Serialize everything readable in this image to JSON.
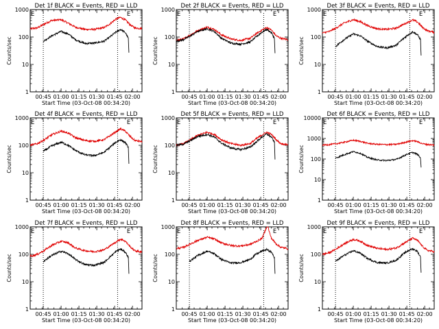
{
  "chart_data": [
    {
      "type": "line",
      "title": "Det 1f BLACK = Events, RED = LLD",
      "xlabel": "Start Time (03-Oct-08 00:34:20)",
      "ylabel": "Counts/sec",
      "yscale": "log",
      "ylim": [
        1,
        1000
      ],
      "xlim": [
        34,
        128
      ],
      "xticks": [
        "00:45",
        "01:00",
        "01:15",
        "01:30",
        "01:45",
        "02:00"
      ],
      "yticks": [
        "1",
        "10",
        "100",
        "1000"
      ],
      "markers": {
        "start": "E",
        "end": "E",
        "start_min": 34,
        "end_min": 117
      },
      "guides": [
        45,
        107.5
      ],
      "series": [
        {
          "color": "#000000",
          "x": [
            45,
            52,
            60,
            66,
            72,
            80,
            88,
            96,
            101,
            106,
            110,
            114,
            116.5,
            117
          ],
          "y": [
            70,
            110,
            160,
            130,
            80,
            58,
            60,
            70,
            100,
            150,
            190,
            145,
            90,
            25
          ]
        },
        {
          "color": "#e00000",
          "x": [
            34,
            40,
            46,
            52,
            60,
            66,
            72,
            80,
            88,
            96,
            101,
            106,
            110,
            114,
            118,
            122,
            128
          ],
          "y": [
            200,
            215,
            300,
            400,
            430,
            320,
            230,
            190,
            190,
            220,
            300,
            450,
            520,
            420,
            280,
            215,
            205
          ]
        }
      ]
    },
    {
      "type": "line",
      "title": "Det 2f BLACK = Events, RED = LLD",
      "xlabel": "Start Time (03-Oct-08 00:34:20)",
      "ylabel": "Counts/sec",
      "yscale": "log",
      "ylim": [
        1,
        1000
      ],
      "xlim": [
        34,
        128
      ],
      "xticks": [
        "00:45",
        "01:00",
        "01:15",
        "01:30",
        "01:45",
        "02:00"
      ],
      "yticks": [
        "1",
        "10",
        "100",
        "1000"
      ],
      "markers": {
        "start": "E",
        "end": "E",
        "start_min": 34,
        "end_min": 117
      },
      "guides": [
        45,
        107.5
      ],
      "series": [
        {
          "color": "#000000",
          "x": [
            34,
            40,
            46,
            52,
            60,
            66,
            72,
            80,
            88,
            96,
            101,
            106,
            110,
            114,
            116.5,
            117
          ],
          "y": [
            70,
            80,
            110,
            160,
            200,
            160,
            90,
            60,
            55,
            65,
            100,
            150,
            190,
            145,
            90,
            25
          ]
        },
        {
          "color": "#e00000",
          "x": [
            34,
            40,
            46,
            52,
            60,
            66,
            72,
            80,
            88,
            96,
            101,
            106,
            110,
            114,
            118,
            122,
            128
          ],
          "y": [
            75,
            85,
            120,
            170,
            230,
            190,
            120,
            85,
            75,
            90,
            130,
            180,
            220,
            180,
            110,
            90,
            80
          ]
        }
      ]
    },
    {
      "type": "line",
      "title": "Det 3f BLACK = Events, RED = LLD",
      "xlabel": "Start Time (03-Oct-08 00:34:20)",
      "ylabel": "Counts/sec",
      "yscale": "log",
      "ylim": [
        1,
        1000
      ],
      "xlim": [
        34,
        128
      ],
      "xticks": [
        "00:45",
        "01:00",
        "01:15",
        "01:30",
        "01:45",
        "02:00"
      ],
      "yticks": [
        "1",
        "10",
        "100",
        "1000"
      ],
      "markers": {
        "start": "E",
        "end": "E",
        "start_min": 34,
        "end_min": 117
      },
      "guides": [
        45,
        107.5
      ],
      "series": [
        {
          "color": "#000000",
          "x": [
            45,
            52,
            60,
            66,
            72,
            80,
            88,
            96,
            101,
            106,
            110,
            114,
            116.5,
            117
          ],
          "y": [
            45,
            80,
            130,
            110,
            70,
            45,
            40,
            50,
            80,
            120,
            155,
            120,
            80,
            20
          ]
        },
        {
          "color": "#e00000",
          "x": [
            34,
            40,
            46,
            52,
            60,
            66,
            72,
            80,
            88,
            96,
            101,
            106,
            110,
            114,
            118,
            122,
            128
          ],
          "y": [
            140,
            160,
            220,
            320,
            430,
            360,
            260,
            200,
            190,
            210,
            270,
            350,
            420,
            350,
            230,
            170,
            150
          ]
        }
      ]
    },
    {
      "type": "line",
      "title": "Det 4f BLACK = Events, RED = LLD",
      "xlabel": "Start Time (03-Oct-08 00:34:20)",
      "ylabel": "Counts/sec",
      "yscale": "log",
      "ylim": [
        1,
        1000
      ],
      "xlim": [
        34,
        128
      ],
      "xticks": [
        "00:45",
        "01:00",
        "01:15",
        "01:30",
        "01:45",
        "02:00"
      ],
      "yticks": [
        "1",
        "10",
        "100",
        "1000"
      ],
      "markers": {
        "start": "E",
        "end": "E",
        "start_min": 34,
        "end_min": 117
      },
      "guides": [
        45,
        107.5
      ],
      "series": [
        {
          "color": "#000000",
          "x": [
            45,
            52,
            60,
            66,
            72,
            80,
            88,
            96,
            101,
            106,
            110,
            114,
            116.5,
            117
          ],
          "y": [
            60,
            95,
            130,
            100,
            65,
            45,
            42,
            55,
            85,
            130,
            160,
            125,
            85,
            20
          ]
        },
        {
          "color": "#e00000",
          "x": [
            34,
            40,
            46,
            52,
            60,
            66,
            72,
            80,
            88,
            96,
            101,
            106,
            110,
            114,
            118,
            122,
            128
          ],
          "y": [
            100,
            115,
            160,
            240,
            330,
            280,
            190,
            150,
            140,
            160,
            220,
            310,
            400,
            330,
            210,
            150,
            135
          ]
        }
      ]
    },
    {
      "type": "line",
      "title": "Det 5f BLACK = Events, RED = LLD",
      "xlabel": "Start Time (03-Oct-08 00:34:20)",
      "ylabel": "Counts/sec",
      "yscale": "log",
      "ylim": [
        1,
        1000
      ],
      "xlim": [
        34,
        128
      ],
      "xticks": [
        "00:45",
        "01:00",
        "01:15",
        "01:30",
        "01:45",
        "02:00"
      ],
      "yticks": [
        "1",
        "10",
        "100",
        "1000"
      ],
      "markers": {
        "start": "E",
        "end": "E",
        "start_min": 34,
        "end_min": 117
      },
      "guides": [
        45,
        107.5
      ],
      "series": [
        {
          "color": "#000000",
          "x": [
            34,
            40,
            46,
            52,
            60,
            66,
            72,
            80,
            88,
            96,
            101,
            106,
            110,
            114,
            116.5,
            117
          ],
          "y": [
            100,
            110,
            150,
            210,
            250,
            200,
            120,
            80,
            70,
            85,
            130,
            200,
            260,
            200,
            130,
            30
          ]
        },
        {
          "color": "#e00000",
          "x": [
            34,
            40,
            46,
            52,
            60,
            66,
            72,
            80,
            88,
            96,
            101,
            106,
            110,
            114,
            118,
            122,
            128
          ],
          "y": [
            100,
            115,
            160,
            230,
            300,
            250,
            160,
            115,
            100,
            115,
            170,
            240,
            300,
            250,
            160,
            115,
            105
          ]
        }
      ]
    },
    {
      "type": "line",
      "title": "Det 6f BLACK = Events, RED = LLD",
      "xlabel": "Start Time (03-Oct-08 00:34:20)",
      "ylabel": "Counts/sec",
      "yscale": "log",
      "ylim": [
        1,
        10000
      ],
      "xlim": [
        34,
        128
      ],
      "xticks": [
        "00:45",
        "01:00",
        "01:15",
        "01:30",
        "01:45",
        "02:00"
      ],
      "yticks": [
        "1",
        "10",
        "100",
        "1000",
        "10000"
      ],
      "markers": {
        "start": "E",
        "end": "E",
        "start_min": 34,
        "end_min": 117
      },
      "guides": [
        45,
        107.5
      ],
      "series": [
        {
          "color": "#000000",
          "x": [
            45,
            52,
            60,
            66,
            72,
            80,
            88,
            96,
            101,
            106,
            110,
            114,
            116.5,
            117
          ],
          "y": [
            110,
            160,
            230,
            190,
            120,
            90,
            85,
            95,
            130,
            180,
            210,
            170,
            110,
            40
          ]
        },
        {
          "color": "#e00000",
          "x": [
            34,
            40,
            46,
            52,
            60,
            66,
            72,
            80,
            88,
            96,
            101,
            106,
            110,
            114,
            118,
            122,
            128
          ],
          "y": [
            480,
            500,
            560,
            650,
            820,
            720,
            580,
            520,
            500,
            520,
            600,
            700,
            780,
            700,
            560,
            510,
            480
          ]
        }
      ]
    },
    {
      "type": "line",
      "title": "Det 7f BLACK = Events, RED = LLD",
      "xlabel": "Start Time (03-Oct-08 00:34:20)",
      "ylabel": "Counts/sec",
      "yscale": "log",
      "ylim": [
        1,
        1000
      ],
      "xlim": [
        34,
        128
      ],
      "xticks": [
        "00:45",
        "01:00",
        "01:15",
        "01:30",
        "01:45",
        "02:00"
      ],
      "yticks": [
        "1",
        "10",
        "100",
        "1000"
      ],
      "markers": {
        "start": "E",
        "end": "E",
        "start_min": 34,
        "end_min": 117
      },
      "guides": [
        45,
        107.5
      ],
      "series": [
        {
          "color": "#000000",
          "x": [
            45,
            52,
            60,
            66,
            72,
            80,
            88,
            96,
            101,
            106,
            110,
            114,
            116.5,
            117
          ],
          "y": [
            55,
            90,
            130,
            105,
            65,
            42,
            40,
            50,
            80,
            125,
            155,
            120,
            80,
            20
          ]
        },
        {
          "color": "#e00000",
          "x": [
            34,
            40,
            46,
            52,
            60,
            66,
            72,
            80,
            88,
            96,
            101,
            106,
            110,
            114,
            118,
            122,
            128
          ],
          "y": [
            85,
            100,
            140,
            210,
            300,
            260,
            170,
            135,
            125,
            145,
            200,
            280,
            360,
            300,
            190,
            135,
            120
          ]
        }
      ]
    },
    {
      "type": "line",
      "title": "Det 8f BLACK = Events, RED = LLD",
      "xlabel": "Start Time (03-Oct-08 00:34:20)",
      "ylabel": "Counts/sec",
      "yscale": "log",
      "ylim": [
        1,
        1000
      ],
      "xlim": [
        34,
        128
      ],
      "xticks": [
        "00:45",
        "01:00",
        "01:15",
        "01:30",
        "01:45",
        "02:00"
      ],
      "yticks": [
        "1",
        "10",
        "100",
        "1000"
      ],
      "markers": {
        "start": "E",
        "end": "E",
        "start_min": 34,
        "end_min": 117
      },
      "guides": [
        45,
        107.5
      ],
      "series": [
        {
          "color": "#000000",
          "x": [
            45,
            52,
            60,
            66,
            72,
            80,
            88,
            96,
            101,
            106,
            110,
            114,
            116.5,
            117
          ],
          "y": [
            55,
            90,
            130,
            105,
            65,
            48,
            50,
            65,
            100,
            130,
            150,
            120,
            75,
            20
          ]
        },
        {
          "color": "#e00000",
          "x": [
            34,
            40,
            46,
            52,
            60,
            66,
            72,
            80,
            88,
            96,
            101,
            106,
            108,
            110,
            111,
            112,
            114,
            118,
            122,
            128
          ],
          "y": [
            160,
            180,
            240,
            320,
            420,
            360,
            260,
            210,
            200,
            230,
            290,
            380,
            600,
            1000,
            1100,
            700,
            380,
            240,
            180,
            160
          ]
        }
      ]
    },
    {
      "type": "line",
      "title": "Det 9f BLACK = Events, RED = LLD",
      "xlabel": "Start Time (03-Oct-08 00:34:20)",
      "ylabel": "Counts/sec",
      "yscale": "log",
      "ylim": [
        1,
        1000
      ],
      "xlim": [
        34,
        128
      ],
      "xticks": [
        "00:45",
        "01:00",
        "01:15",
        "01:30",
        "01:45",
        "02:00"
      ],
      "yticks": [
        "1",
        "10",
        "100",
        "1000"
      ],
      "markers": {
        "start": "E",
        "end": "E",
        "start_min": 34,
        "end_min": 117
      },
      "guides": [
        45,
        107.5
      ],
      "series": [
        {
          "color": "#000000",
          "x": [
            45,
            52,
            60,
            66,
            72,
            80,
            88,
            96,
            101,
            106,
            110,
            114,
            116.5,
            117
          ],
          "y": [
            55,
            90,
            135,
            110,
            70,
            50,
            48,
            60,
            95,
            135,
            160,
            125,
            80,
            20
          ]
        },
        {
          "color": "#e00000",
          "x": [
            34,
            40,
            46,
            52,
            60,
            66,
            72,
            80,
            88,
            96,
            101,
            106,
            110,
            114,
            118,
            122,
            128
          ],
          "y": [
            100,
            115,
            160,
            240,
            350,
            300,
            210,
            165,
            150,
            170,
            230,
            310,
            390,
            320,
            200,
            140,
            125
          ]
        }
      ]
    }
  ]
}
